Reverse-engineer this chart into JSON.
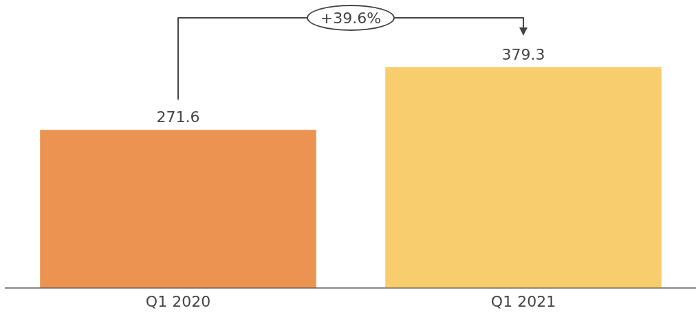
{
  "chart_data": {
    "type": "bar",
    "categories": [
      "Q1 2020",
      "Q1 2021"
    ],
    "values": [
      271.6,
      379.3
    ],
    "colors": [
      "#eb9452",
      "#f8cd6e"
    ],
    "data_labels": true,
    "relative": false,
    "grid": false,
    "legend": false,
    "annotations": [
      "+39.6%"
    ]
  }
}
